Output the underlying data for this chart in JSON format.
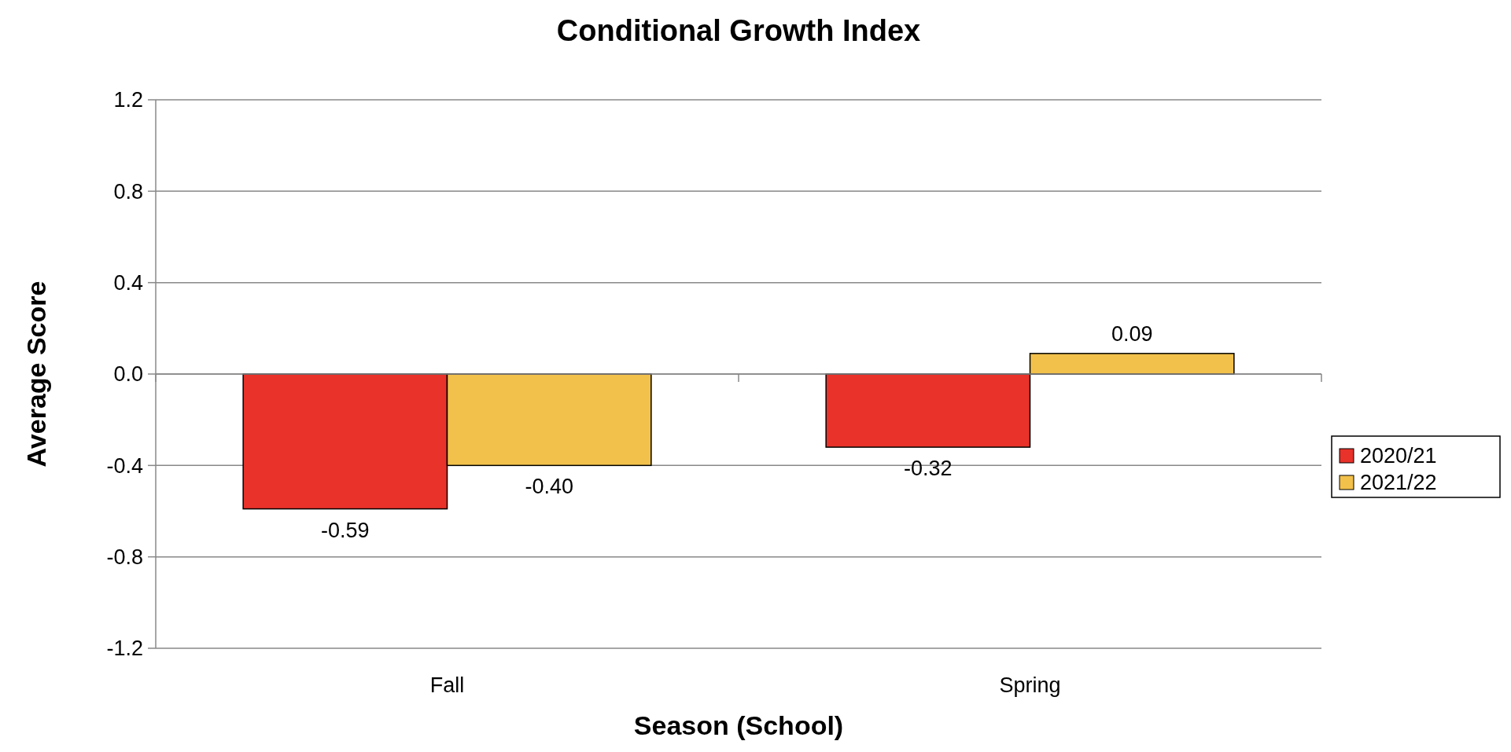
{
  "chart_data": {
    "type": "bar",
    "title": "Conditional Growth Index",
    "xlabel": "Season (School)",
    "ylabel": "Average Score",
    "categories": [
      "Fall",
      "Spring"
    ],
    "series": [
      {
        "name": "2020/21",
        "color": "#e8322a",
        "values": [
          -0.59,
          -0.32
        ],
        "value_labels": [
          "-0.59",
          "-0.32"
        ]
      },
      {
        "name": "2021/22",
        "color": "#f2c14b",
        "values": [
          -0.4,
          0.09
        ],
        "value_labels": [
          "-0.40",
          "0.09"
        ]
      }
    ],
    "ylim": [
      -1.2,
      1.2
    ],
    "yticks": [
      {
        "value": -1.2,
        "label": "-1.2"
      },
      {
        "value": -0.8,
        "label": "-0.8"
      },
      {
        "value": -0.4,
        "label": "-0.4"
      },
      {
        "value": 0,
        "label": "0.0"
      },
      {
        "value": 0.4,
        "label": "0.4"
      },
      {
        "value": 0.8,
        "label": "0.8"
      },
      {
        "value": 1.2,
        "label": "1.2"
      }
    ],
    "grid": "y",
    "legend": "right"
  }
}
